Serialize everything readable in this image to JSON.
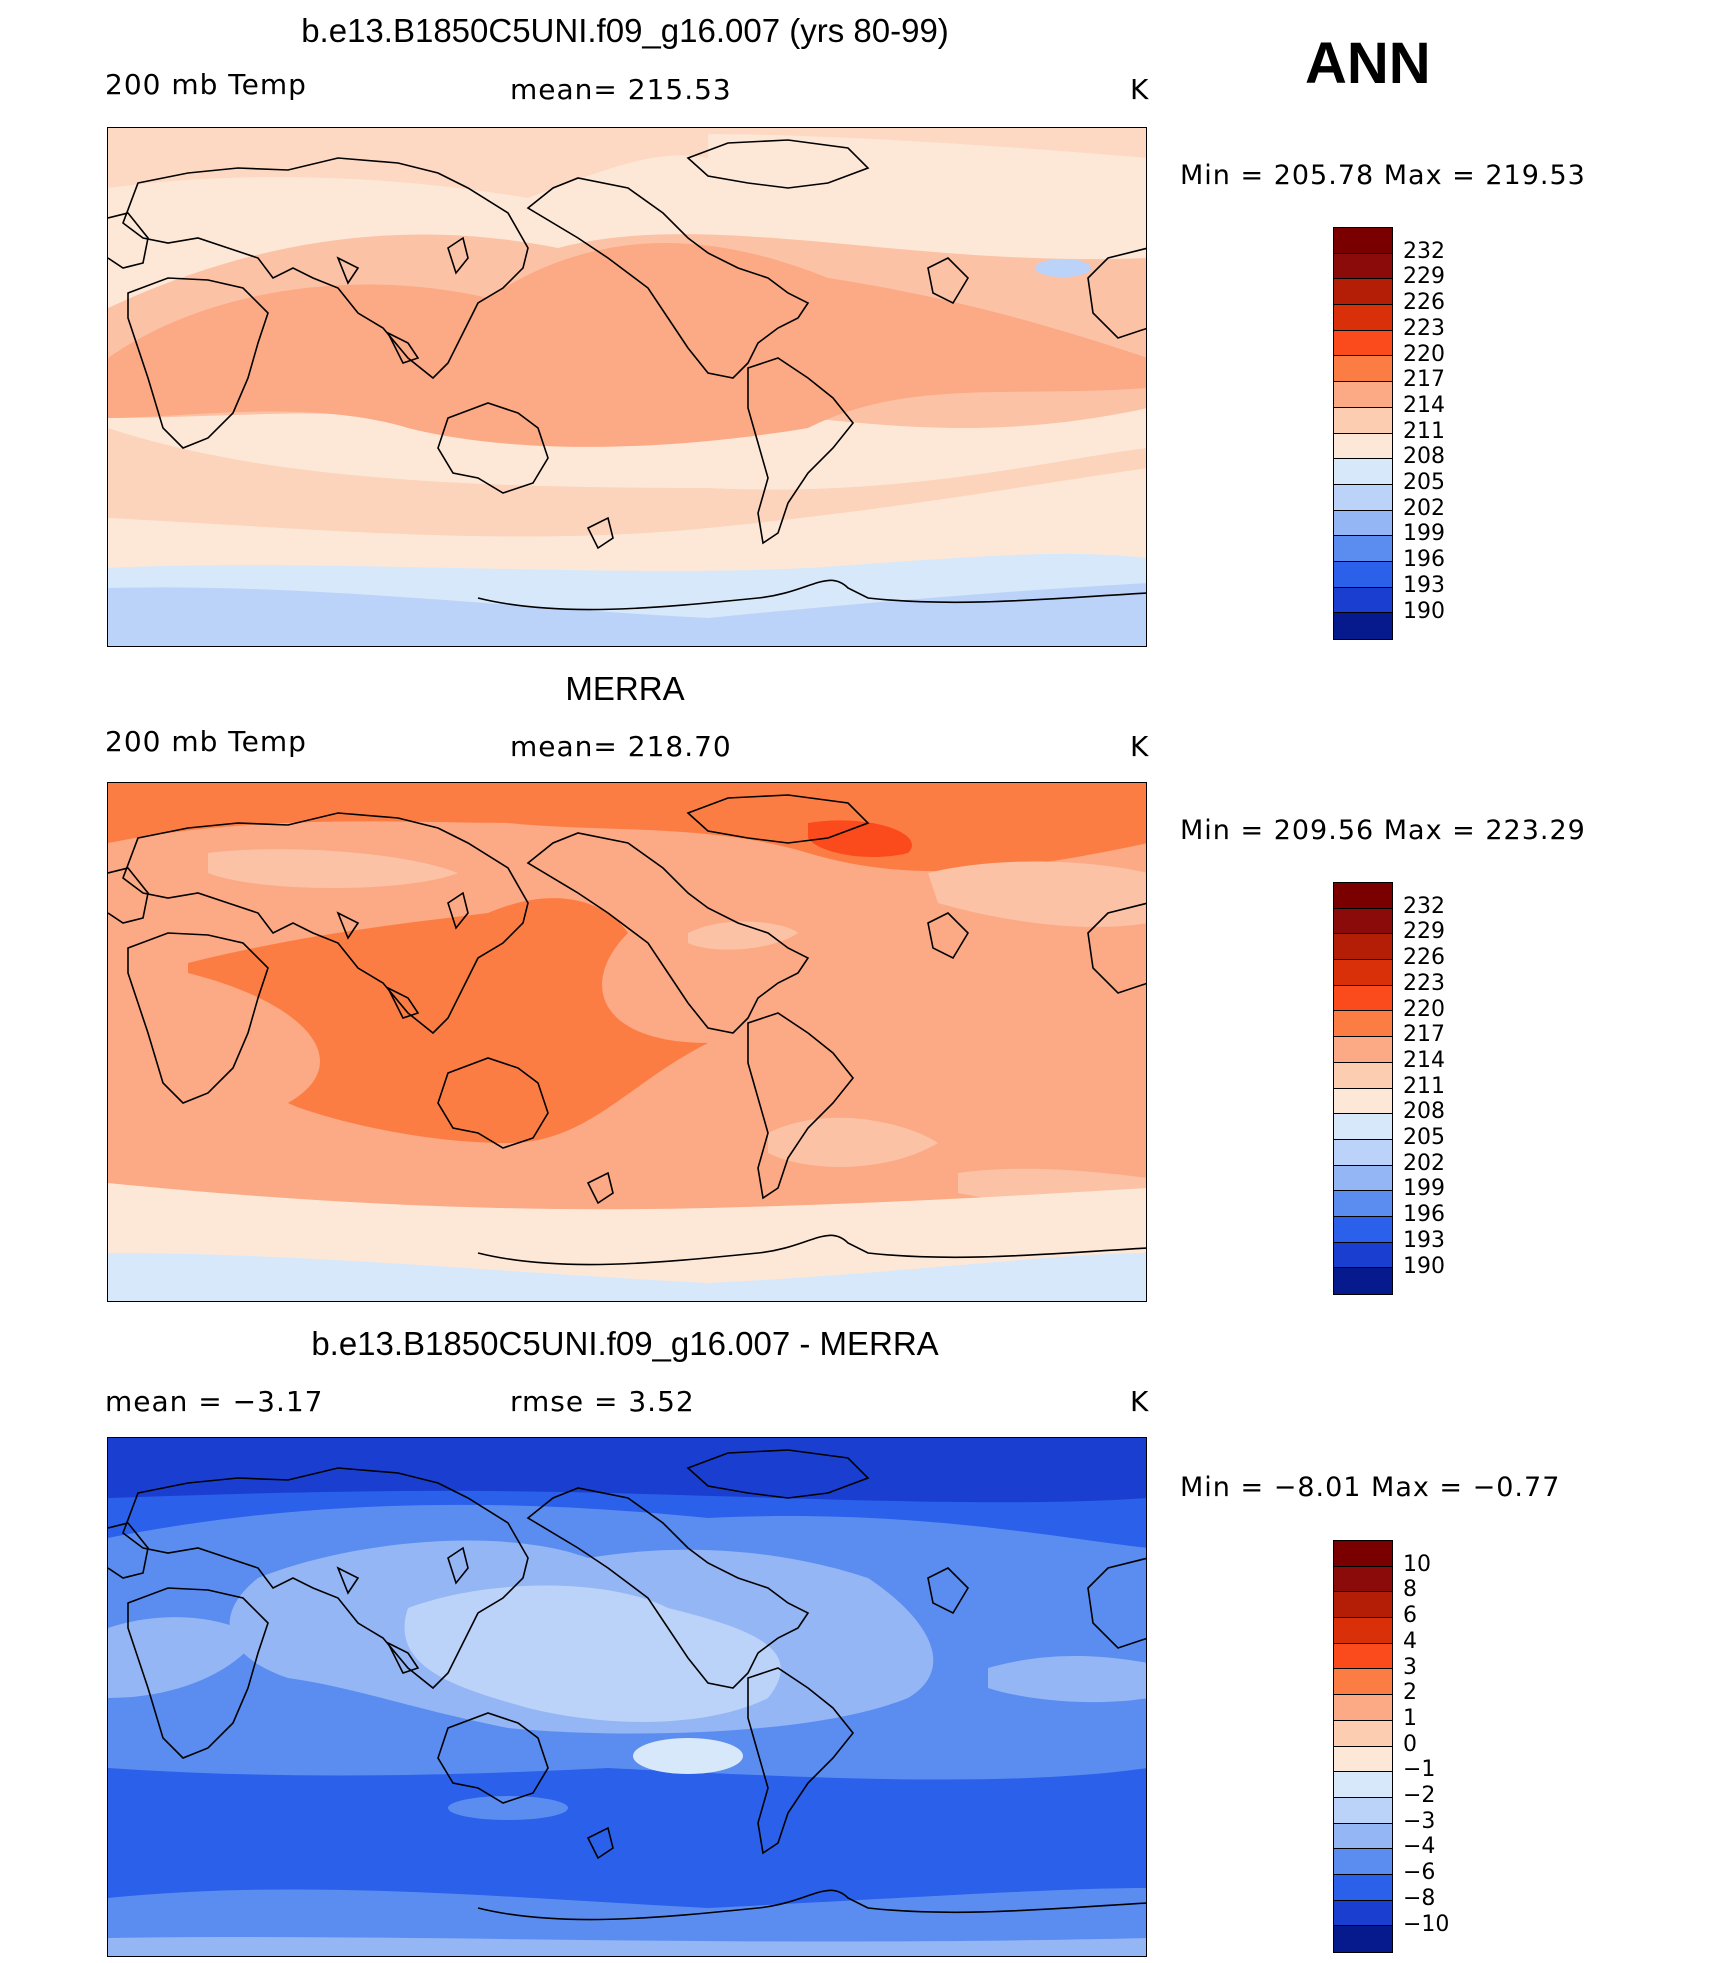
{
  "season": "ANN",
  "units": "K",
  "panels": [
    {
      "title": "b.e13.B1850C5UNI.f09_g16.007 (yrs 80-99)",
      "left_label": "200 mb Temp",
      "center_label": "mean= 215.53",
      "right_label": "K",
      "min_max": "Min  =  205.78  Max  =  219.53",
      "levels": [
        "232",
        "229",
        "226",
        "223",
        "220",
        "217",
        "214",
        "211",
        "208",
        "205",
        "202",
        "199",
        "196",
        "193",
        "190"
      ],
      "colors": [
        "#8b0a0a",
        "#b51e06",
        "#d9300a",
        "#fb4a1c",
        "#fc7d44",
        "#fca985",
        "#fdcdb1",
        "#fde8d8",
        "#d7e8fa",
        "#bcd3f9",
        "#94b6f5",
        "#5b8df0",
        "#2b60ea",
        "#1a3fd0",
        "#061a8e"
      ],
      "base_color": "#fdcdb1"
    },
    {
      "title": "MERRA",
      "left_label": "200 mb Temp",
      "center_label": "mean= 218.70",
      "right_label": "K",
      "min_max": "Min  =  209.56  Max  =  223.29",
      "levels": [
        "232",
        "229",
        "226",
        "223",
        "220",
        "217",
        "214",
        "211",
        "208",
        "205",
        "202",
        "199",
        "196",
        "193",
        "190"
      ],
      "colors": [
        "#8b0a0a",
        "#b51e06",
        "#d9300a",
        "#fb4a1c",
        "#fc7d44",
        "#fca985",
        "#fdcdb1",
        "#fde8d8",
        "#d7e8fa",
        "#bcd3f9",
        "#94b6f5",
        "#5b8df0",
        "#2b60ea",
        "#1a3fd0",
        "#061a8e"
      ],
      "base_color": "#fca985"
    },
    {
      "title": "b.e13.B1850C5UNI.f09_g16.007 - MERRA",
      "left_label": "mean =    −3.17",
      "center_label": "rmse =     3.52",
      "right_label": "K",
      "min_max": "Min  =    −8.01  Max  =    −0.77",
      "levels": [
        "10",
        "8",
        "6",
        "4",
        "3",
        "2",
        "1",
        "0",
        "−1",
        "−2",
        "−3",
        "−4",
        "−6",
        "−8",
        "−10"
      ],
      "colors": [
        "#8b0a0a",
        "#b51e06",
        "#d9300a",
        "#fb4a1c",
        "#fc7d44",
        "#fca985",
        "#fdcdb1",
        "#fde8d8",
        "#d7e8fa",
        "#bcd3f9",
        "#94b6f5",
        "#5b8df0",
        "#2b60ea",
        "#1a3fd0",
        "#061a8e"
      ],
      "base_color": "#5b8df0"
    }
  ]
}
